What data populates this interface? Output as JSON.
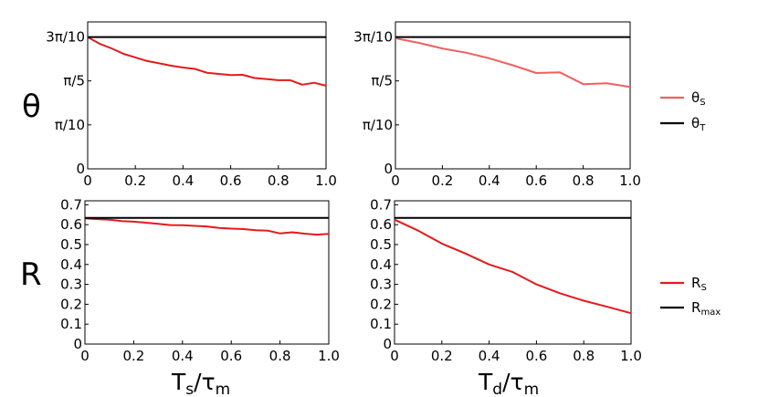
{
  "row_labels": {
    "top": "θ",
    "bottom": "R"
  },
  "x_axis_labels": {
    "left": {
      "main": "T",
      "sub": "s",
      "sep": "/τ",
      "sub2": "m"
    },
    "right": {
      "main": "T",
      "sub": "d",
      "sep": "/τ",
      "sub2": "m"
    }
  },
  "legends": {
    "top": [
      {
        "main": "θ",
        "sub": "S",
        "color": "#f06060"
      },
      {
        "main": "θ",
        "sub": "T",
        "color": "#000000"
      }
    ],
    "bottom": [
      {
        "main": "R",
        "sub": "S",
        "color": "#e41a1c"
      },
      {
        "main": "R",
        "sub": "max",
        "color": "#000000"
      }
    ]
  },
  "colors": {
    "theta_s_left": "#e41a1c",
    "theta_s_right": "#f06060",
    "r_s": "#e41a1c",
    "reference": "#000000"
  },
  "chart_data": [
    {
      "type": "line",
      "panel": "top-left",
      "x_tick_labels": [
        "0",
        "0.2",
        "0.4",
        "0.6",
        "0.8",
        "1.0"
      ],
      "y_tick_labels": [
        "0",
        "π/10",
        "π/5",
        "3π/10"
      ],
      "ylim": [
        0,
        1.05
      ],
      "xlim": [
        0,
        1
      ],
      "series": [
        {
          "name": "θS",
          "color": "#e41a1c",
          "x": [
            0,
            0.05,
            0.1,
            0.15,
            0.2,
            0.25,
            0.3,
            0.35,
            0.4,
            0.45,
            0.5,
            0.55,
            0.6,
            0.65,
            0.7,
            0.75,
            0.8,
            0.85,
            0.9,
            0.95,
            1.0
          ],
          "y": [
            0.942,
            0.894,
            0.861,
            0.822,
            0.796,
            0.77,
            0.754,
            0.737,
            0.724,
            0.714,
            0.687,
            0.678,
            0.67,
            0.672,
            0.649,
            0.642,
            0.633,
            0.633,
            0.601,
            0.615,
            0.594
          ]
        },
        {
          "name": "θT",
          "color": "#000000",
          "x": [
            0,
            1.0
          ],
          "y": [
            0.942,
            0.942
          ]
        }
      ]
    },
    {
      "type": "line",
      "panel": "top-right",
      "x_tick_labels": [
        "0",
        "0.2",
        "0.4",
        "0.6",
        "0.8",
        "1.0"
      ],
      "y_tick_labels": [
        "0",
        "π/10",
        "π/5",
        "3π/10"
      ],
      "ylim": [
        0,
        1.05
      ],
      "xlim": [
        0,
        1
      ],
      "series": [
        {
          "name": "θS",
          "color": "#f06060",
          "x": [
            0,
            0.1,
            0.2,
            0.3,
            0.4,
            0.5,
            0.6,
            0.7,
            0.8,
            0.9,
            1.0
          ],
          "y": [
            0.933,
            0.9,
            0.86,
            0.83,
            0.79,
            0.74,
            0.685,
            0.69,
            0.605,
            0.612,
            0.585
          ]
        },
        {
          "name": "θT",
          "color": "#000000",
          "x": [
            0,
            1.0
          ],
          "y": [
            0.942,
            0.942
          ]
        }
      ]
    },
    {
      "type": "line",
      "panel": "bottom-left",
      "x_tick_labels": [
        "0",
        "0.2",
        "0.4",
        "0.6",
        "0.8",
        "1.0"
      ],
      "y_tick_labels": [
        "0",
        "0.1",
        "0.2",
        "0.3",
        "0.4",
        "0.5",
        "0.6",
        "0.7"
      ],
      "ylim": [
        0,
        0.72
      ],
      "xlim": [
        0,
        1
      ],
      "series": [
        {
          "name": "RS",
          "color": "#e41a1c",
          "x": [
            0,
            0.05,
            0.1,
            0.15,
            0.2,
            0.25,
            0.3,
            0.35,
            0.4,
            0.45,
            0.5,
            0.55,
            0.6,
            0.65,
            0.7,
            0.75,
            0.8,
            0.85,
            0.9,
            0.95,
            1.0
          ],
          "y": [
            0.632,
            0.628,
            0.625,
            0.618,
            0.615,
            0.61,
            0.604,
            0.598,
            0.597,
            0.594,
            0.591,
            0.584,
            0.58,
            0.578,
            0.572,
            0.57,
            0.556,
            0.562,
            0.555,
            0.55,
            0.554
          ]
        },
        {
          "name": "Rmax",
          "color": "#000000",
          "x": [
            0,
            1.0
          ],
          "y": [
            0.634,
            0.634
          ]
        }
      ]
    },
    {
      "type": "line",
      "panel": "bottom-right",
      "x_tick_labels": [
        "0",
        "0.2",
        "0.4",
        "0.6",
        "0.8",
        "1.0"
      ],
      "y_tick_labels": [
        "0",
        "0.1",
        "0.2",
        "0.3",
        "0.4",
        "0.5",
        "0.6",
        "0.7"
      ],
      "ylim": [
        0,
        0.72
      ],
      "xlim": [
        0,
        1
      ],
      "series": [
        {
          "name": "RS",
          "color": "#e41a1c",
          "x": [
            0,
            0.1,
            0.2,
            0.3,
            0.4,
            0.5,
            0.6,
            0.7,
            0.8,
            0.9,
            1.0
          ],
          "y": [
            0.625,
            0.57,
            0.505,
            0.455,
            0.4,
            0.362,
            0.3,
            0.255,
            0.218,
            0.187,
            0.155
          ]
        },
        {
          "name": "Rmax",
          "color": "#000000",
          "x": [
            0,
            1.0
          ],
          "y": [
            0.634,
            0.634
          ]
        }
      ]
    }
  ]
}
